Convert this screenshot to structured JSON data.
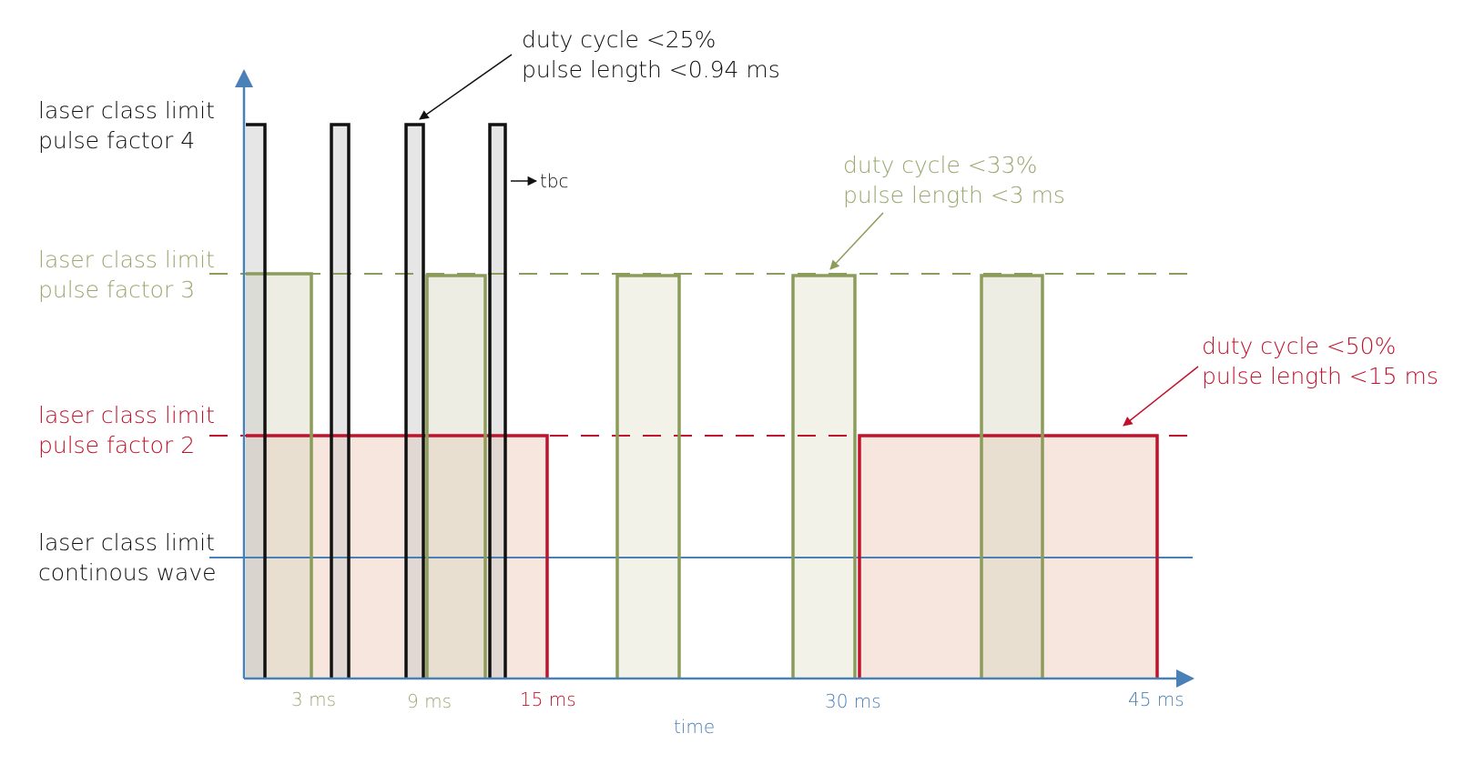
{
  "colors": {
    "black": "#111111",
    "green": "#8c9c5a",
    "red": "#c0122c",
    "blue": "#4a80b8",
    "green_text": "#9aa86e",
    "red_text": "#c0122c",
    "tick_text": "#4a80b8",
    "fill_gray": "#e8e8e8",
    "fill_green": "#f2f2e8",
    "fill_red": "#f6e6de"
  },
  "levels": {
    "factor4": {
      "line1": "laser class limit",
      "line2": "pulse factor 4"
    },
    "factor3": {
      "line1": "laser class limit",
      "line2": "pulse factor 3"
    },
    "factor2": {
      "line1": "laser class limit",
      "line2": "pulse factor 2"
    },
    "cw": {
      "line1": "laser class limit",
      "line2": "continous wave"
    }
  },
  "annotations": {
    "black": {
      "line1": "duty cycle <25%",
      "line2": "pulse length <0.94 ms"
    },
    "green": {
      "line1": "duty cycle <33%",
      "line2": "pulse length <3 ms"
    },
    "red": {
      "line1": "duty cycle <50%",
      "line2": "pulse length <15 ms"
    },
    "tbc": "tbc"
  },
  "axis": {
    "xlabel": "time",
    "ticks": [
      "3 ms",
      "9 ms",
      "15 ms",
      "30 ms",
      "45 ms"
    ]
  }
}
